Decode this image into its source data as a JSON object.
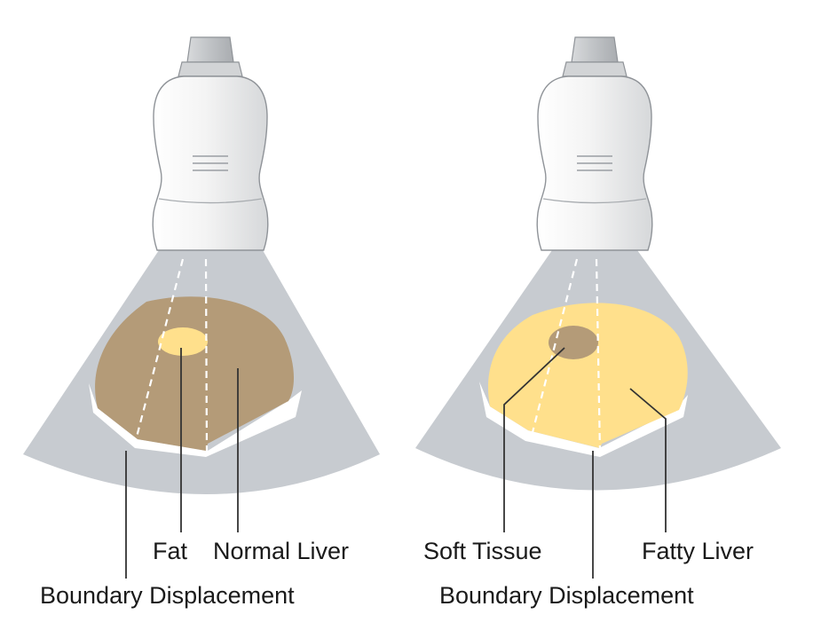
{
  "panels": [
    {
      "labels": {
        "inclusion": "Fat",
        "organ": "Normal Liver",
        "boundary": "Boundary Displacement"
      },
      "colors": {
        "organ": "#b49b78",
        "inclusion": "#ffe08c"
      }
    },
    {
      "labels": {
        "inclusion": "Soft Tissue",
        "organ": "Fatty Liver",
        "boundary": "Boundary Displacement"
      },
      "colors": {
        "organ": "#ffe08c",
        "inclusion": "#b49b78"
      }
    }
  ],
  "colors": {
    "beam": "#c7cbd0",
    "probe_body": "#f2f2f2",
    "probe_outline": "#9a9ea3",
    "cable": "#c4c6c9",
    "boundary_band": "#ffffff",
    "leader_line": "#333333",
    "dashed_ray": "#ffffff"
  }
}
